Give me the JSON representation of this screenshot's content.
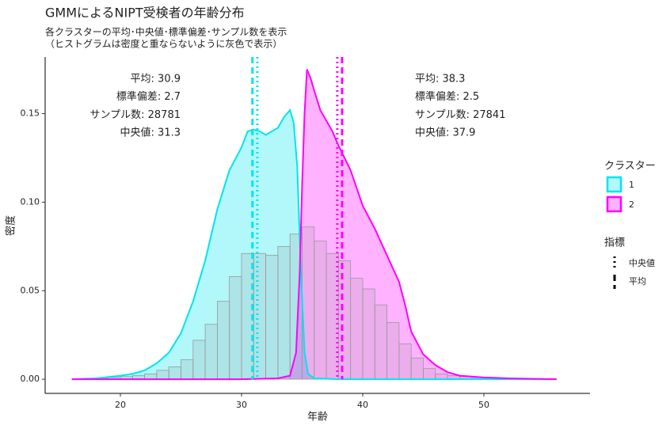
{
  "chart_data": {
    "type": "density",
    "title": "GMMによるNIPT受検者の年齢分布",
    "subtitle": [
      "各クラスターの平均･中央値･標準偏差･サンプル数を表示",
      "（ヒストグラムは密度と重ならないように灰色で表示）"
    ],
    "x_label": "年齢",
    "y_label": "密度",
    "xlim": [
      13.79,
      58.76
    ],
    "ylim": [
      -0.008,
      0.182
    ],
    "xticks": [
      20,
      30,
      40,
      50
    ],
    "yticks": [
      {
        "value": 0,
        "label": "0.00"
      },
      {
        "value": 0.05,
        "label": "0.05"
      },
      {
        "value": 0.1,
        "label": "0.10"
      },
      {
        "value": 0.15,
        "label": "0.15"
      }
    ],
    "histogram": {
      "color": "#999999",
      "bins": [
        16,
        17,
        18,
        19,
        20,
        21,
        22,
        23,
        24,
        25,
        26,
        27,
        28,
        29,
        30,
        31,
        32,
        33,
        34,
        35,
        36,
        37,
        38,
        39,
        40,
        41,
        42,
        43,
        44,
        45,
        46,
        47,
        48,
        49,
        50,
        51,
        52,
        53,
        54,
        55,
        56
      ],
      "values": [
        0.0002,
        0.0003,
        0.0005,
        0.001,
        0.0015,
        0.002,
        0.003,
        0.005,
        0.007,
        0.011,
        0.022,
        0.031,
        0.044,
        0.058,
        0.071,
        0.071,
        0.07,
        0.075,
        0.082,
        0.086,
        0.078,
        0.071,
        0.067,
        0.057,
        0.051,
        0.042,
        0.032,
        0.02,
        0.012,
        0.006,
        0.003,
        0.002,
        0.0015,
        0.001,
        0.0008,
        0.0005,
        0.0004,
        0.0003,
        0.0002,
        0.0001
      ]
    },
    "legend_title": "クラスター",
    "series": [
      {
        "name": "1",
        "color": "#00e5ee",
        "x": [
          16,
          18,
          20,
          21,
          22,
          23,
          24,
          25,
          26,
          27,
          28,
          29,
          30,
          30.5,
          31,
          31.5,
          32,
          32.5,
          33,
          33.5,
          34,
          34.3,
          34.6,
          34.9,
          35.2,
          35.5,
          36,
          38,
          40,
          56
        ],
        "values": [
          0,
          0.0005,
          0.002,
          0.003,
          0.005,
          0.009,
          0.015,
          0.026,
          0.044,
          0.067,
          0.096,
          0.118,
          0.131,
          0.14,
          0.141,
          0.14,
          0.138,
          0.14,
          0.142,
          0.148,
          0.152,
          0.145,
          0.12,
          0.06,
          0.015,
          0.003,
          0.0005,
          0,
          0,
          0
        ],
        "mean": 30.9,
        "sd": 2.7,
        "n": 28781,
        "median": 31.3,
        "stat_labels": {
          "mean": "平均: 30.9",
          "sd": "標準偏差: 2.7",
          "n": "サンプル数: 28781",
          "median": "中央値: 31.3"
        }
      },
      {
        "name": "2",
        "color": "#ff00ff",
        "x": [
          16,
          30,
          33,
          34,
          34.5,
          34.8,
          35,
          35.2,
          35.4,
          35.7,
          36,
          36.5,
          37,
          37.5,
          38,
          38.5,
          39,
          39.5,
          40,
          41,
          42,
          43,
          43.5,
          44,
          45,
          46,
          47,
          48,
          50,
          52,
          56
        ],
        "values": [
          0,
          0,
          0.0005,
          0.002,
          0.015,
          0.06,
          0.11,
          0.15,
          0.175,
          0.17,
          0.163,
          0.152,
          0.146,
          0.14,
          0.132,
          0.125,
          0.118,
          0.108,
          0.098,
          0.085,
          0.07,
          0.055,
          0.042,
          0.027,
          0.014,
          0.008,
          0.004,
          0.002,
          0.001,
          0.0005,
          0
        ],
        "mean": 38.3,
        "sd": 2.5,
        "n": 27841,
        "median": 37.9,
        "stat_labels": {
          "mean": "平均: 38.3",
          "sd": "標準偏差: 2.5",
          "n": "サンプル数: 27841",
          "median": "中央値: 37.9"
        }
      }
    ],
    "stat_legend": {
      "title": "指標",
      "items": [
        {
          "stat": "median",
          "name": "中央値",
          "dash": "dotted"
        },
        {
          "stat": "mean",
          "name": "平均",
          "dash": "dashed"
        }
      ]
    }
  }
}
